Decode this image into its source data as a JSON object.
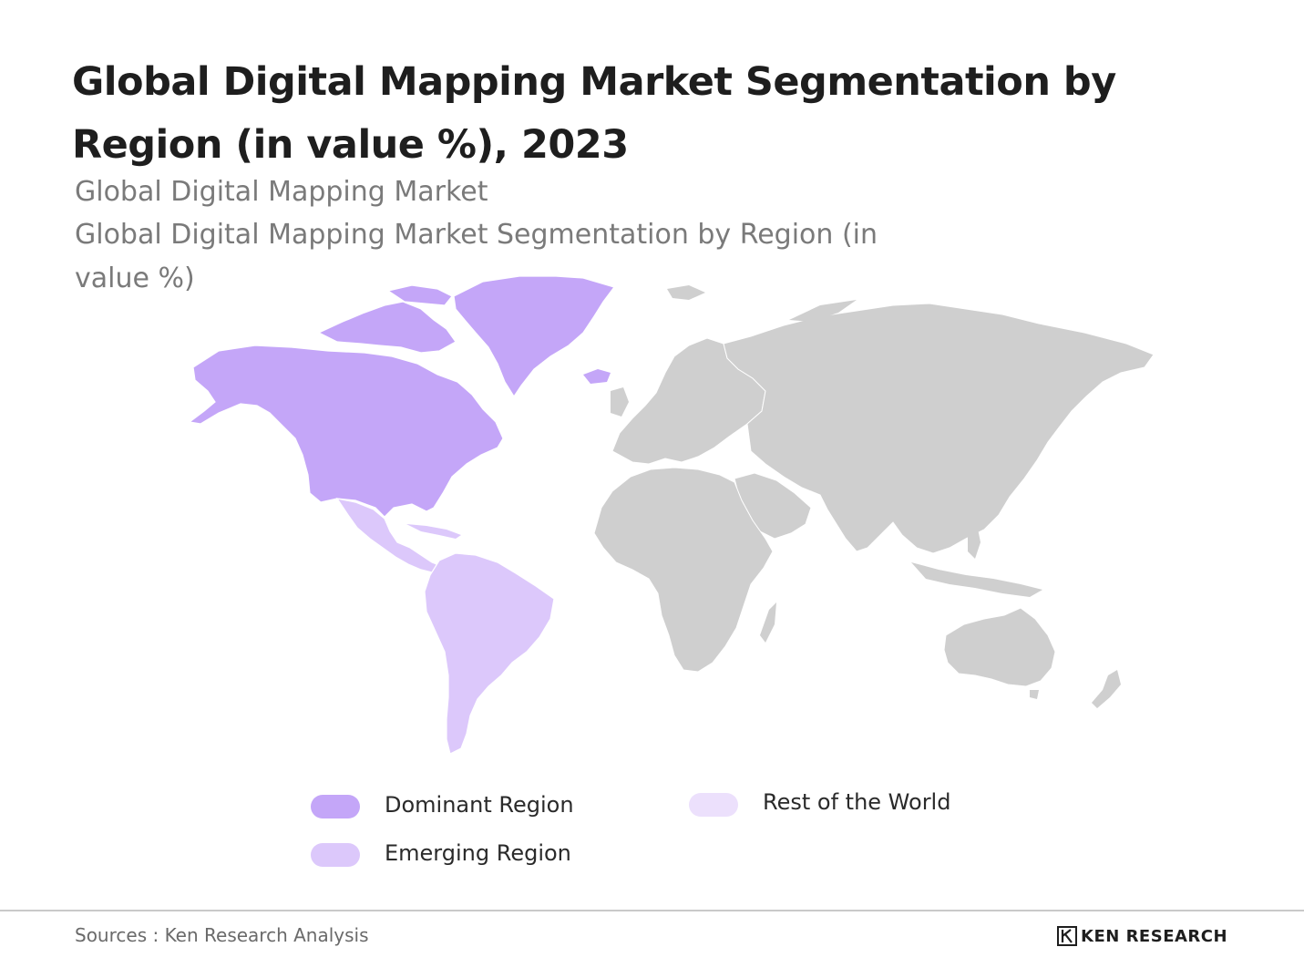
{
  "title": "Global Digital Mapping Market Segmentation by Region (in value %), 2023",
  "subtitle_line1": "Global Digital Mapping Market",
  "subtitle_line2": "Global Digital Mapping Market Segmentation by Region (in value %)",
  "colors": {
    "dominant": "#c4a6f8",
    "emerging": "#dcc8fb",
    "rest_of_world": "#ece0fc",
    "land_other": "#cfcfcf"
  },
  "regions": {
    "dominant": "North America",
    "emerging": "Latin America"
  },
  "legend": {
    "dominant_label": "Dominant Region",
    "emerging_label": "Emerging Region",
    "rest_label": "Rest of the World"
  },
  "footer": {
    "source": "Sources : Ken Research Analysis",
    "logo_text": "KEN RESEARCH",
    "logo_mark": "KR-monogram"
  }
}
